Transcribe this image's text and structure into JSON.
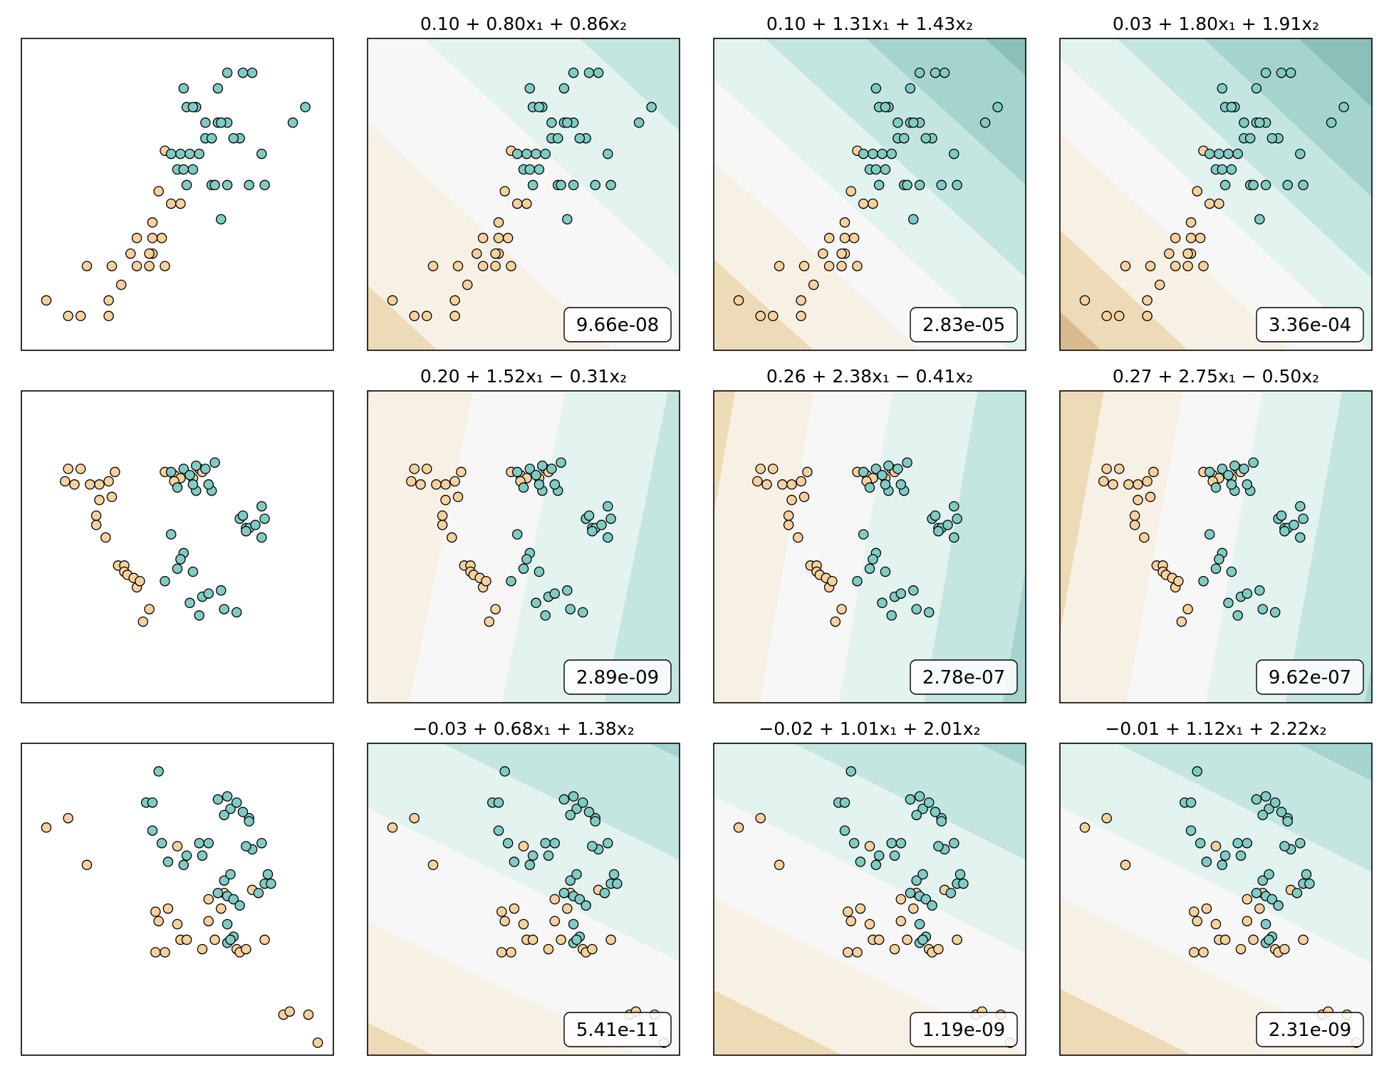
{
  "figure": {
    "colors": {
      "class_a": "#f6d19d",
      "class_b": "#80cbc4",
      "ramp": [
        "#b9a080",
        "#d9b98e",
        "#eddab7",
        "#f7f0e4",
        "#f7f7f7",
        "#e3f3f0",
        "#c4e6e0",
        "#a5d4cf",
        "#8bbfb9",
        "#7ea59f"
      ]
    },
    "rows": [
      "row-0",
      "row-1",
      "row-2"
    ]
  },
  "chart_data": [
    {
      "type": "scatter",
      "row": 0,
      "col": 0,
      "title": "",
      "xlim": [
        0,
        100
      ],
      "ylim": [
        0,
        100
      ],
      "points": [
        {
          "class": 0,
          "x": [
            8,
            15,
            19,
            28,
            32,
            28,
            21,
            29,
            37,
            41,
            46,
            35,
            42,
            41,
            45,
            37,
            42,
            42,
            48,
            44,
            51,
            46
          ],
          "y": [
            16,
            11,
            11,
            11,
            21,
            16,
            27,
            27,
            27,
            27,
            27,
            31,
            31,
            31,
            36,
            36,
            41,
            36,
            47,
            51,
            47,
            64
          ]
        },
        {
          "class": 1,
          "x": [
            66,
            71,
            74,
            52,
            63,
            53,
            56,
            55,
            63,
            66,
            59,
            64,
            70,
            59,
            61,
            68,
            51,
            54,
            57,
            55,
            48,
            50,
            52,
            53,
            61,
            77,
            78,
            91,
            87,
            64,
            73,
            66,
            62
          ],
          "y": [
            89,
            89,
            89,
            84,
            84,
            78,
            78,
            78,
            73,
            73,
            73,
            73,
            68,
            68,
            68,
            68,
            63,
            63,
            63,
            58,
            63,
            58,
            58,
            53,
            53,
            63,
            53,
            78,
            73,
            42,
            53,
            53,
            53
          ]
        }
      ]
    },
    {
      "type": "contour_scatter",
      "row": 0,
      "col": 1,
      "title": "0.10 + 0.80x₁ + 0.86x₂",
      "score": "9.66e-08",
      "weights": [
        0.1,
        0.8,
        0.86
      ],
      "levels": [
        -3.0,
        -2.2,
        -1.2,
        -0.3,
        0.45,
        1.25,
        2.1,
        2.8,
        3.6
      ]
    },
    {
      "type": "contour_scatter",
      "row": 0,
      "col": 2,
      "title": "0.10 + 1.31x₁ + 1.43x₂",
      "score": "2.83e-05",
      "weights": [
        0.1,
        1.31,
        1.43
      ],
      "levels": [
        -3.6,
        -2.7,
        -1.8,
        -0.9,
        -0.15,
        0.65,
        1.5,
        2.5,
        3.6
      ]
    },
    {
      "type": "contour_scatter",
      "row": 0,
      "col": 3,
      "title": "0.03 + 1.80x₁ + 1.91x₂",
      "score": "3.36e-04",
      "weights": [
        0.03,
        1.8,
        1.91
      ],
      "levels": [
        -4.2,
        -3.2,
        -2.2,
        -1.0,
        -0.1,
        0.8,
        1.8,
        2.9,
        4.0
      ]
    },
    {
      "type": "scatter",
      "row": 1,
      "col": 0,
      "title": "",
      "xlim": [
        0,
        100
      ],
      "ylim": [
        0,
        100
      ],
      "points": [
        {
          "class": 0,
          "x": [
            15,
            19,
            14,
            17,
            22,
            29,
            30,
            28,
            25,
            25,
            24,
            24,
            27,
            31,
            33,
            33,
            34,
            36,
            37,
            38,
            41,
            39,
            46,
            49,
            51,
            49,
            55,
            57,
            58
          ],
          "y": [
            75,
            75,
            71,
            70,
            70,
            66,
            74,
            71,
            70,
            65,
            60,
            57,
            53,
            44,
            44,
            42,
            41,
            40,
            37,
            39,
            30,
            26,
            74,
            73,
            72,
            71,
            72,
            75,
            74
          ]
        },
        {
          "class": 1,
          "x": [
            56,
            61,
            60,
            56,
            52,
            48,
            50,
            54,
            55,
            59,
            62,
            70,
            72,
            77,
            77,
            71,
            73,
            75,
            72,
            48,
            52,
            51,
            50,
            46,
            55,
            58,
            60,
            64,
            54,
            57,
            65,
            69,
            78
          ],
          "y": [
            68,
            68,
            70,
            76,
            75,
            74,
            69,
            73,
            70,
            75,
            77,
            59,
            56,
            63,
            53,
            60,
            56,
            57,
            55,
            54,
            48,
            46,
            43,
            39,
            42,
            34,
            35,
            36,
            32,
            28,
            30,
            29,
            59
          ]
        }
      ]
    },
    {
      "type": "contour_scatter",
      "row": 1,
      "col": 1,
      "title": "0.20 + 1.52x₁ − 0.31x₂",
      "score": "2.89e-09",
      "weights": [
        0.2,
        1.52,
        -0.31
      ],
      "levels": [
        -3.4,
        -2.6,
        -1.6,
        -0.6,
        0.3,
        1.3,
        2.2,
        3.0,
        3.8
      ]
    },
    {
      "type": "contour_scatter",
      "row": 1,
      "col": 2,
      "title": "0.26 + 2.38x₁ − 0.41x₂",
      "score": "2.78e-07",
      "weights": [
        0.26,
        2.38,
        -0.41
      ],
      "levels": [
        -4.6,
        -3.4,
        -2.2,
        -1.0,
        0.2,
        1.5,
        2.7,
        3.9,
        5.2
      ]
    },
    {
      "type": "contour_scatter",
      "row": 1,
      "col": 3,
      "title": "0.27 + 2.75x₁ − 0.50x₂",
      "score": "9.62e-07",
      "weights": [
        0.27,
        2.75,
        -0.5
      ],
      "levels": [
        -5.0,
        -3.6,
        -2.2,
        -0.8,
        0.6,
        2.0,
        3.4,
        4.8,
        6.2
      ]
    },
    {
      "type": "scatter",
      "row": 2,
      "col": 0,
      "title": "",
      "xlim": [
        0,
        100
      ],
      "ylim": [
        0,
        100
      ],
      "points": [
        {
          "class": 0,
          "x": [
            8,
            15,
            21,
            50,
            47,
            43,
            44,
            50,
            51,
            43,
            46,
            53,
            58,
            60,
            65,
            74,
            64,
            60,
            62,
            69,
            70,
            72,
            78,
            92,
            84,
            86,
            95
          ],
          "y": [
            73,
            76,
            61,
            67,
            47,
            46,
            43,
            42,
            37,
            33,
            33,
            37,
            34,
            50,
            52,
            53,
            47,
            43,
            37,
            34,
            33,
            34,
            37,
            13,
            13,
            14,
            4
          ]
        },
        {
          "class": 1,
          "x": [
            44,
            40,
            42,
            42,
            45,
            57,
            60,
            53,
            58,
            47,
            52,
            63,
            65,
            67,
            66,
            68,
            70,
            66,
            68,
            66,
            67,
            76,
            78,
            80,
            79,
            74,
            77,
            72,
            73,
            67,
            65,
            63,
            66,
            69,
            71,
            73
          ],
          "y": [
            91,
            81,
            81,
            72,
            68,
            68,
            68,
            64,
            64,
            62,
            61,
            52,
            56,
            58,
            51,
            50,
            48,
            42,
            38,
            36,
            37,
            52,
            55,
            55,
            58,
            66,
            68,
            67,
            76,
            79,
            77,
            82,
            83,
            81,
            78,
            75
          ]
        }
      ]
    },
    {
      "type": "contour_scatter",
      "row": 2,
      "col": 1,
      "title": "−0.03 + 0.68x₁ + 1.38x₂",
      "score": "5.41e-11",
      "weights": [
        -0.03,
        0.68,
        1.38
      ],
      "levels": [
        -3.6,
        -2.7,
        -1.8,
        -0.9,
        0.1,
        1.0,
        1.9,
        2.8,
        3.7
      ]
    },
    {
      "type": "contour_scatter",
      "row": 2,
      "col": 2,
      "title": "−0.02 + 1.01x₁ + 2.01x₂",
      "score": "1.19e-09",
      "weights": [
        -0.02,
        1.01,
        2.01
      ],
      "levels": [
        -4.6,
        -3.4,
        -2.2,
        -1.0,
        0.3,
        1.5,
        2.7,
        3.9,
        5.1
      ]
    },
    {
      "type": "contour_scatter",
      "row": 2,
      "col": 3,
      "title": "−0.01 + 1.12x₁ + 2.22x₂",
      "score": "2.31e-09",
      "weights": [
        -0.01,
        1.12,
        2.22
      ],
      "levels": [
        -5.0,
        -3.7,
        -2.4,
        -1.1,
        0.2,
        1.5,
        2.8,
        4.1,
        5.4
      ]
    }
  ]
}
